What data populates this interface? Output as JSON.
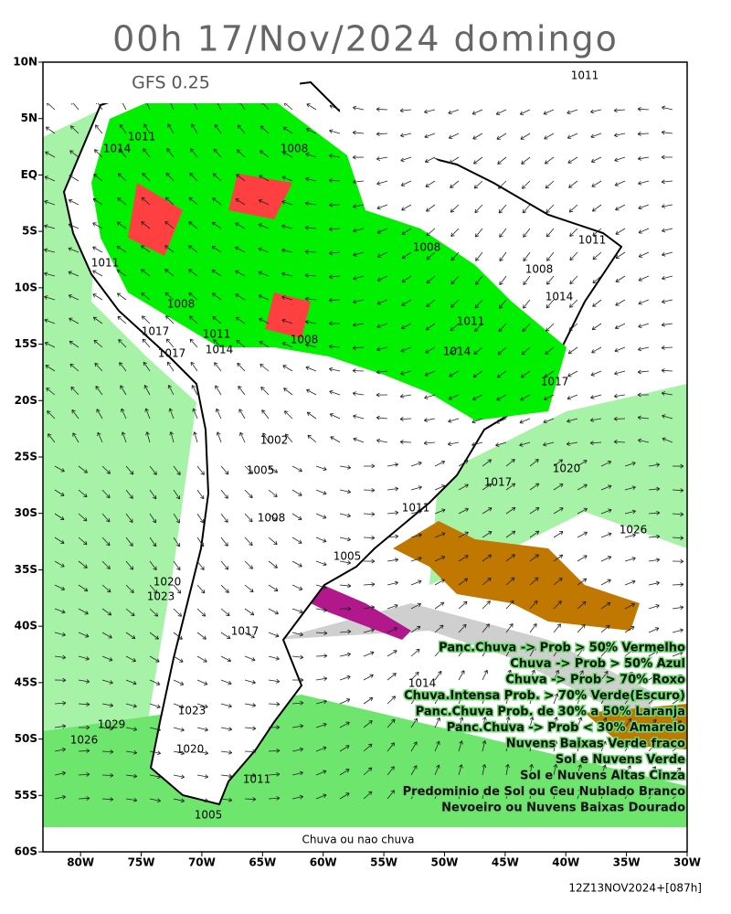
{
  "title": "00h 17/Nov/2024 domingo",
  "model": "GFS 0.25",
  "caption": "Chuva ou nao chuva",
  "footer": "12Z13NOV2024+[087h]",
  "map": {
    "lonlim": [
      -83.1,
      -30
    ],
    "latlim": [
      -60,
      10
    ],
    "lat_ticks": [
      {
        "value": 10,
        "label": "10N"
      },
      {
        "value": 5,
        "label": "5N"
      },
      {
        "value": 0,
        "label": "EQ"
      },
      {
        "value": -5,
        "label": "5S"
      },
      {
        "value": -10,
        "label": "10S"
      },
      {
        "value": -15,
        "label": "15S"
      },
      {
        "value": -20,
        "label": "20S"
      },
      {
        "value": -25,
        "label": "25S"
      },
      {
        "value": -30,
        "label": "30S"
      },
      {
        "value": -35,
        "label": "35S"
      },
      {
        "value": -40,
        "label": "40S"
      },
      {
        "value": -45,
        "label": "45S"
      },
      {
        "value": -50,
        "label": "50S"
      },
      {
        "value": -55,
        "label": "55S"
      },
      {
        "value": -60,
        "label": "60S"
      }
    ],
    "lon_ticks": [
      {
        "value": -80,
        "label": "80W"
      },
      {
        "value": -75,
        "label": "75W"
      },
      {
        "value": -70,
        "label": "70W"
      },
      {
        "value": -65,
        "label": "65W"
      },
      {
        "value": -60,
        "label": "60W"
      },
      {
        "value": -55,
        "label": "55W"
      },
      {
        "value": -50,
        "label": "50W"
      },
      {
        "value": -45,
        "label": "45W"
      },
      {
        "value": -40,
        "label": "40W"
      },
      {
        "value": -35,
        "label": "35W"
      },
      {
        "value": -30,
        "label": "30W"
      }
    ]
  },
  "legend": [
    "Panc.Chuva -> Prob > 50% Vermelho",
    "Chuva -> Prob > 50% Azul",
    "Chuva -> Prob > 70% Roxo",
    "Chuva.Intensa Prob. > 70% Verde(Escuro)",
    "Panc.Chuva Prob. de 30% a 50% Laranja",
    "Panc.Chuva -> Prob < 30% Amarelo",
    "Nuvens Baixas Verde fraco",
    "Sol e Nuvens Verde",
    "Sol e Nuvens Altas Cinza",
    "Predominio de Sol ou Ceu Nublado Branco",
    "Nevoeiro ou Nuvens Baixas Dourado"
  ],
  "isobar_labels": [
    "1011",
    "1014",
    "1011",
    "1008",
    "1008",
    "1011",
    "1008",
    "1014",
    "1011",
    "1008",
    "1011",
    "1017",
    "1011",
    "1008",
    "1017",
    "1014",
    "1014",
    "1017",
    "1002",
    "1005",
    "1017",
    "1020",
    "1011",
    "1008",
    "1026",
    "1005",
    "1020",
    "1023",
    "1017",
    "1014",
    "1023",
    "1029",
    "1026",
    "1020",
    "1011",
    "1005"
  ]
}
